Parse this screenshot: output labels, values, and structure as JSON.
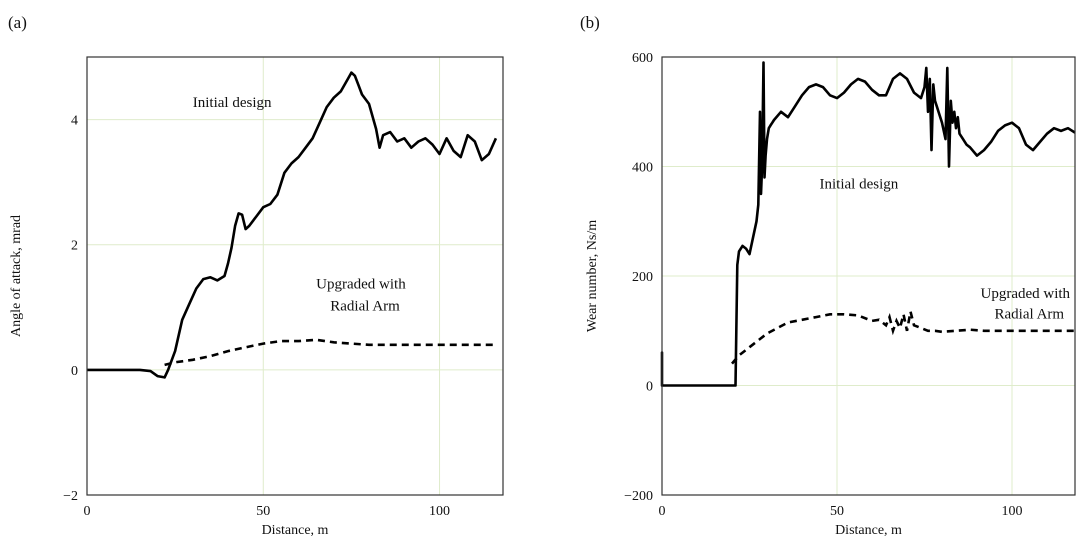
{
  "chart_data": [
    {
      "panel": "(a)",
      "type": "line",
      "xlabel": "Distance, m",
      "ylabel": "Angle of attack, mrad",
      "xlim": [
        0,
        118
      ],
      "ylim": [
        -2,
        5
      ],
      "xticks": [
        0,
        50,
        100
      ],
      "yticks": [
        -2,
        0,
        2,
        4
      ],
      "xtick_labels": [
        "0",
        "50",
        "100"
      ],
      "ytick_labels": [
        "−2",
        "0",
        "2",
        "4"
      ],
      "grid": true,
      "annotations": [
        {
          "text": "Initial design",
          "x": 30,
          "y": 4.2
        },
        {
          "text": "Upgraded with",
          "x": 65,
          "y": 1.3
        },
        {
          "text": "Radial Arm",
          "x": 69,
          "y": 0.95
        }
      ],
      "series": [
        {
          "style": "solid",
          "x": [
            0,
            15,
            18,
            20,
            22,
            23,
            25,
            27,
            29,
            31,
            33,
            35,
            37,
            39,
            40,
            41,
            42,
            43,
            44,
            45,
            46,
            48,
            50,
            52,
            54,
            56,
            58,
            60,
            62,
            64,
            66,
            68,
            70,
            72,
            74,
            75,
            76,
            77,
            78,
            80,
            82,
            83,
            84,
            86,
            88,
            90,
            92,
            94,
            96,
            98,
            100,
            102,
            104,
            106,
            108,
            110,
            112,
            114,
            116
          ],
          "y": [
            0,
            0,
            -0.02,
            -0.1,
            -0.12,
            0.0,
            0.3,
            0.8,
            1.05,
            1.3,
            1.45,
            1.48,
            1.43,
            1.5,
            1.7,
            1.95,
            2.3,
            2.5,
            2.48,
            2.25,
            2.3,
            2.45,
            2.6,
            2.65,
            2.8,
            3.15,
            3.3,
            3.4,
            3.55,
            3.7,
            3.95,
            4.2,
            4.35,
            4.45,
            4.65,
            4.75,
            4.7,
            4.55,
            4.4,
            4.25,
            3.85,
            3.55,
            3.75,
            3.8,
            3.65,
            3.7,
            3.55,
            3.65,
            3.7,
            3.6,
            3.45,
            3.7,
            3.5,
            3.4,
            3.75,
            3.65,
            3.35,
            3.45,
            3.7
          ]
        },
        {
          "style": "dashed",
          "x": [
            22,
            25,
            30,
            35,
            40,
            45,
            50,
            55,
            60,
            65,
            70,
            75,
            80,
            90,
            100,
            110,
            116
          ],
          "y": [
            0.08,
            0.12,
            0.16,
            0.22,
            0.3,
            0.36,
            0.42,
            0.46,
            0.46,
            0.48,
            0.44,
            0.42,
            0.4,
            0.4,
            0.4,
            0.4,
            0.4
          ]
        }
      ]
    },
    {
      "panel": "(b)",
      "type": "line",
      "xlabel": "Distance, m",
      "ylabel": "Wear number, Ns/m",
      "xlim": [
        0,
        118
      ],
      "ylim": [
        -200,
        600
      ],
      "xticks": [
        0,
        50,
        100
      ],
      "yticks": [
        -200,
        0,
        200,
        400,
        600
      ],
      "xtick_labels": [
        "0",
        "50",
        "100"
      ],
      "ytick_labels": [
        "−200",
        "0",
        "200",
        "400",
        "600"
      ],
      "grid": true,
      "annotations": [
        {
          "text": "Initial design",
          "x": 45,
          "y": 360
        },
        {
          "text": "Upgraded with",
          "x": 91,
          "y": 160
        },
        {
          "text": "Radial Arm",
          "x": 95,
          "y": 122
        }
      ],
      "series": [
        {
          "style": "solid",
          "x": [
            0,
            0,
            0,
            21,
            21,
            21.5,
            22,
            23,
            24,
            25,
            26,
            27,
            27.5,
            28,
            28.3,
            28.6,
            29,
            29.3,
            29.6,
            30,
            30.5,
            31,
            31.5,
            32,
            34,
            36,
            38,
            40,
            42,
            44,
            46,
            48,
            50,
            52,
            54,
            56,
            58,
            60,
            62,
            64,
            66,
            68,
            70,
            72,
            74,
            75,
            75.5,
            76,
            76.5,
            77,
            77.5,
            78,
            78.5,
            79,
            80,
            81,
            81.5,
            82,
            82.5,
            83,
            83.5,
            84,
            84.5,
            85,
            86,
            87,
            88,
            90,
            92,
            94,
            96,
            98,
            100,
            102,
            104,
            106,
            108,
            110,
            112,
            114,
            116,
            118
          ],
          "y": [
            40,
            60,
            0,
            0,
            0,
            220,
            245,
            255,
            250,
            240,
            270,
            300,
            330,
            500,
            350,
            400,
            590,
            380,
            420,
            450,
            470,
            475,
            480,
            485,
            500,
            490,
            510,
            530,
            545,
            550,
            545,
            530,
            525,
            535,
            550,
            560,
            555,
            540,
            530,
            530,
            560,
            570,
            560,
            535,
            525,
            545,
            580,
            500,
            560,
            430,
            550,
            520,
            510,
            500,
            480,
            450,
            580,
            400,
            520,
            480,
            500,
            470,
            490,
            460,
            450,
            440,
            435,
            420,
            430,
            445,
            465,
            475,
            480,
            470,
            440,
            430,
            445,
            460,
            470,
            465,
            470,
            462
          ]
        },
        {
          "style": "dashed",
          "x": [
            20,
            22,
            25,
            28,
            30,
            33,
            36,
            40,
            44,
            48,
            52,
            56,
            60,
            62,
            64,
            65,
            66,
            67,
            68,
            69,
            70,
            71,
            72,
            74,
            76,
            78,
            80,
            84,
            88,
            92,
            96,
            100,
            110,
            118
          ],
          "y": [
            40,
            55,
            70,
            85,
            95,
            105,
            115,
            120,
            125,
            130,
            130,
            128,
            118,
            120,
            110,
            125,
            100,
            118,
            105,
            130,
            100,
            135,
            110,
            105,
            100,
            100,
            98,
            100,
            102,
            100,
            100,
            100,
            100,
            100
          ]
        }
      ]
    }
  ]
}
